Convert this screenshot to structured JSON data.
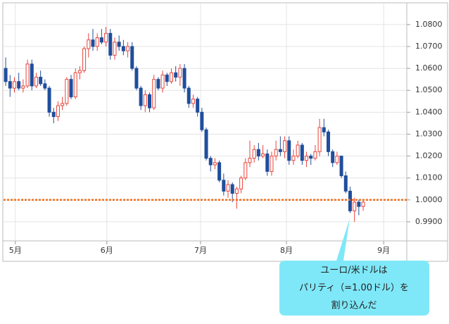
{
  "chart_data": {
    "type": "candlestick",
    "open": [
      1.06,
      1.054,
      1.051,
      1.054,
      1.051,
      1.052,
      1.062,
      1.052,
      1.056,
      1.053,
      1.051,
      1.04,
      1.038,
      1.043,
      1.044,
      1.055,
      1.047,
      1.058,
      1.059,
      1.069,
      1.073,
      1.07,
      1.074,
      1.072,
      1.076,
      1.066,
      1.072,
      1.07,
      1.068,
      1.07,
      1.06,
      1.051,
      1.043,
      1.048,
      1.042,
      1.055,
      1.051,
      1.057,
      1.054,
      1.058,
      1.056,
      1.06,
      1.051,
      1.044,
      1.046,
      1.04,
      1.032,
      1.019,
      1.016,
      1.017,
      1.009,
      1.004,
      1.007,
      1.003,
      1.005,
      1.01,
      1.017,
      1.019,
      1.023,
      1.02,
      1.021,
      1.013,
      1.02,
      1.023,
      1.022,
      1.027,
      1.018,
      1.02,
      1.025,
      1.018,
      1.02,
      1.019,
      1.022,
      1.033,
      1.031,
      1.022,
      1.017,
      1.02,
      1.011,
      1.004,
      0.995,
      0.999,
      0.997
    ],
    "high": [
      1.065,
      1.057,
      1.056,
      1.058,
      1.055,
      1.064,
      1.064,
      1.058,
      1.059,
      1.055,
      1.052,
      1.042,
      1.045,
      1.047,
      1.056,
      1.057,
      1.06,
      1.061,
      1.07,
      1.076,
      1.078,
      1.076,
      1.078,
      1.079,
      1.078,
      1.074,
      1.075,
      1.073,
      1.072,
      1.072,
      1.061,
      1.052,
      1.05,
      1.049,
      1.057,
      1.056,
      1.059,
      1.058,
      1.06,
      1.061,
      1.062,
      1.062,
      1.052,
      1.048,
      1.047,
      1.042,
      1.033,
      1.02,
      1.019,
      1.018,
      1.012,
      1.009,
      1.008,
      1.006,
      1.011,
      1.019,
      1.027,
      1.025,
      1.026,
      1.025,
      1.023,
      1.022,
      1.027,
      1.029,
      1.029,
      1.029,
      1.023,
      1.027,
      1.026,
      1.022,
      1.021,
      1.025,
      1.037,
      1.037,
      1.032,
      1.023,
      1.022,
      1.02,
      1.013,
      1.006,
      1.001,
      1.0,
      1.0
    ],
    "low": [
      1.052,
      1.047,
      1.049,
      1.05,
      1.049,
      1.051,
      1.05,
      1.051,
      1.052,
      1.05,
      1.038,
      1.035,
      1.036,
      1.041,
      1.043,
      1.046,
      1.046,
      1.055,
      1.058,
      1.065,
      1.068,
      1.068,
      1.071,
      1.07,
      1.064,
      1.064,
      1.068,
      1.066,
      1.065,
      1.059,
      1.05,
      1.041,
      1.04,
      1.04,
      1.041,
      1.05,
      1.049,
      1.052,
      1.053,
      1.054,
      1.052,
      1.049,
      1.042,
      1.042,
      1.038,
      1.031,
      1.018,
      1.013,
      1.014,
      1.008,
      1.002,
      1.001,
      0.999,
      0.996,
      1.003,
      1.009,
      1.015,
      1.017,
      1.018,
      1.019,
      1.011,
      1.011,
      1.018,
      1.02,
      1.019,
      1.016,
      1.016,
      1.019,
      1.016,
      1.015,
      1.016,
      1.018,
      1.02,
      1.029,
      1.02,
      1.015,
      1.016,
      1.01,
      1.003,
      0.994,
      0.99,
      0.993,
      0.995
    ],
    "close": [
      1.054,
      1.051,
      1.054,
      1.051,
      1.052,
      1.062,
      1.052,
      1.056,
      1.053,
      1.051,
      1.04,
      1.038,
      1.043,
      1.044,
      1.055,
      1.047,
      1.058,
      1.059,
      1.069,
      1.073,
      1.07,
      1.074,
      1.072,
      1.076,
      1.066,
      1.072,
      1.07,
      1.068,
      1.07,
      1.06,
      1.051,
      1.043,
      1.048,
      1.042,
      1.055,
      1.051,
      1.057,
      1.054,
      1.058,
      1.056,
      1.06,
      1.051,
      1.044,
      1.046,
      1.04,
      1.032,
      1.019,
      1.016,
      1.017,
      1.009,
      1.004,
      1.007,
      1.003,
      1.005,
      1.01,
      1.017,
      1.019,
      1.023,
      1.02,
      1.021,
      1.013,
      1.02,
      1.023,
      1.022,
      1.027,
      1.018,
      1.02,
      1.025,
      1.018,
      1.02,
      1.019,
      1.022,
      1.033,
      1.031,
      1.022,
      1.017,
      1.02,
      1.011,
      1.004,
      0.995,
      0.999,
      0.997,
      0.999
    ],
    "up_color": "#e8443a",
    "down_color": "#1f4e9c",
    "xlim": [
      -0.5,
      92
    ],
    "xticks": [
      {
        "value": 2.2,
        "label": "5月"
      },
      {
        "value": 23.2,
        "label": "6月"
      },
      {
        "value": 44.7,
        "label": "7月"
      },
      {
        "value": 64.4,
        "label": "8月"
      },
      {
        "value": 86.7,
        "label": "9月"
      }
    ],
    "ylim": [
      0.9813,
      1.0896
    ],
    "yticks": [
      {
        "value": 0.99,
        "label": "0.9900"
      },
      {
        "value": 1.0,
        "label": "1.0000"
      },
      {
        "value": 1.01,
        "label": "1.0100"
      },
      {
        "value": 1.02,
        "label": "1.0200"
      },
      {
        "value": 1.03,
        "label": "1.0300"
      },
      {
        "value": 1.04,
        "label": "1.0400"
      },
      {
        "value": 1.05,
        "label": "1.0500"
      },
      {
        "value": 1.06,
        "label": "1.0600"
      },
      {
        "value": 1.07,
        "label": "1.0700"
      },
      {
        "value": 1.08,
        "label": "1.0800"
      }
    ],
    "grid": true,
    "reference_line": {
      "value": 1.0,
      "color": "#f07020"
    },
    "annotation": [
      "ユーロ/米ドルは",
      "パリティ（=1.00ドル）を",
      "割り込んだ"
    ]
  }
}
